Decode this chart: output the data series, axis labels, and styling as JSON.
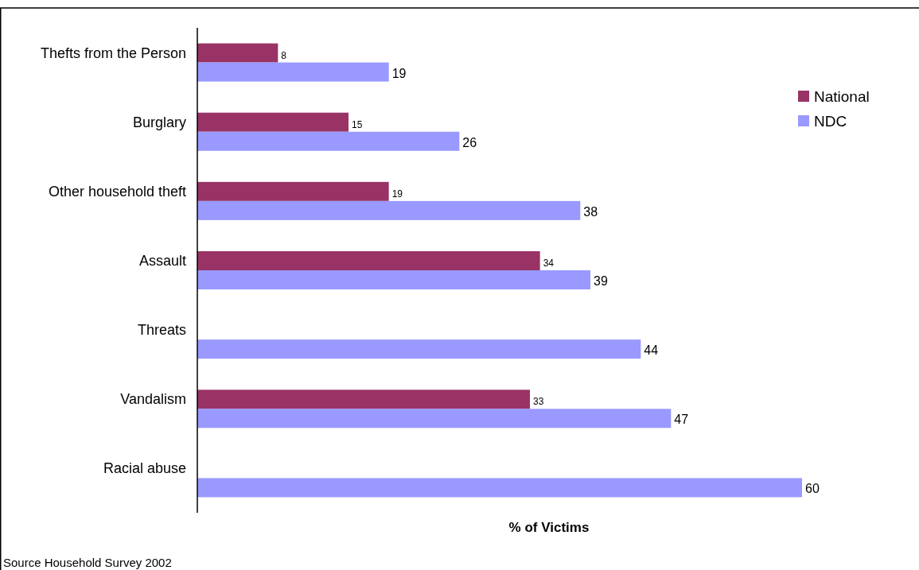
{
  "chart_data": {
    "type": "bar",
    "orientation": "horizontal",
    "xlabel": "% of Victims",
    "categories": [
      "Thefts from the Person",
      "Burglary",
      "Other household theft",
      "Assault",
      "Threats",
      "Vandalism",
      "Racial abuse"
    ],
    "series": [
      {
        "name": "National",
        "color": "#993366",
        "values": [
          8,
          15,
          19,
          34,
          null,
          33,
          null
        ]
      },
      {
        "name": "NDC",
        "color": "#9999ff",
        "values": [
          19,
          26,
          38,
          39,
          44,
          47,
          60
        ]
      }
    ],
    "data_labels": true,
    "legend": "top right",
    "grid": false,
    "tick_labels": "y",
    "annotations": [
      "Source Household Survey 2002"
    ]
  }
}
